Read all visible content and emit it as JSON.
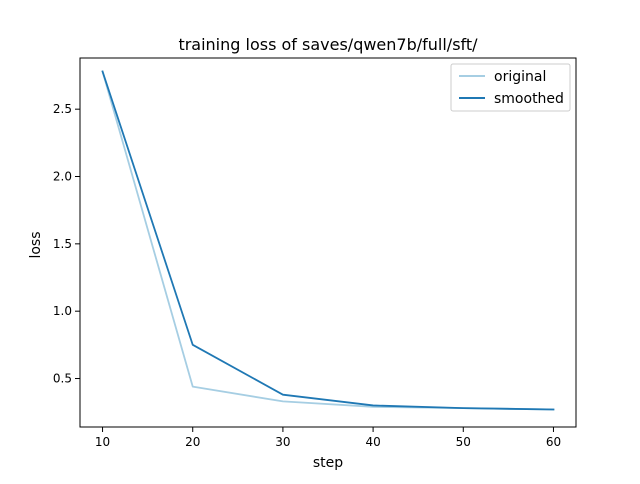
{
  "chart_data": {
    "type": "line",
    "title": "training loss of saves/qwen7b/full/sft/",
    "xlabel": "step",
    "ylabel": "loss",
    "xlim": [
      7.5,
      62.5
    ],
    "ylim": [
      0.14,
      2.88
    ],
    "xticks": [
      10,
      20,
      30,
      40,
      50,
      60
    ],
    "yticks": [
      0.5,
      1.0,
      1.5,
      2.0,
      2.5
    ],
    "xtick_labels": [
      "10",
      "20",
      "30",
      "40",
      "50",
      "60"
    ],
    "ytick_labels": [
      "0.5",
      "1.0",
      "1.5",
      "2.0",
      "2.5"
    ],
    "x": [
      10,
      20,
      30,
      40,
      50,
      60
    ],
    "series": [
      {
        "name": "original",
        "color": "#a6cee3",
        "values": [
          2.78,
          0.44,
          0.33,
          0.29,
          0.28,
          0.27
        ]
      },
      {
        "name": "smoothed",
        "color": "#1f78b4",
        "values": [
          2.78,
          0.75,
          0.38,
          0.3,
          0.28,
          0.27
        ]
      }
    ],
    "legend_position": "top-right",
    "grid": false
  }
}
